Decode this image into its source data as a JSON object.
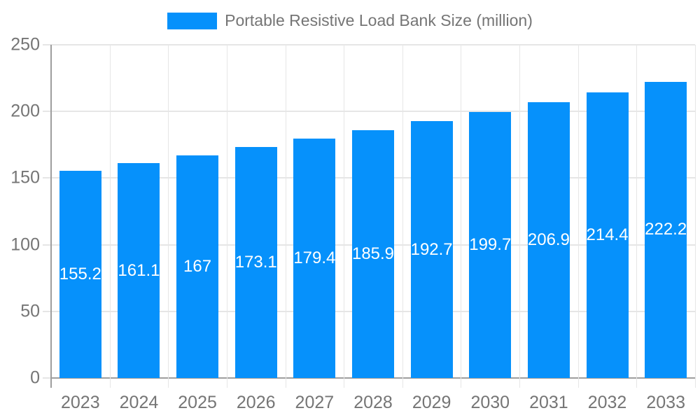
{
  "chart_data": {
    "type": "bar",
    "title": "Portable Resistive Load Bank Size (million)",
    "categories": [
      "2023",
      "2024",
      "2025",
      "2026",
      "2027",
      "2028",
      "2029",
      "2030",
      "2031",
      "2032",
      "2033"
    ],
    "values": [
      155.2,
      161.1,
      167,
      173.1,
      179.4,
      185.9,
      192.7,
      199.7,
      206.9,
      214.4,
      222.2
    ],
    "xlabel": "",
    "ylabel": "",
    "ylim": [
      0,
      250
    ],
    "yticks": [
      0,
      50,
      100,
      150,
      200,
      250
    ],
    "grid": true,
    "legend_position": "top-center",
    "colors": {
      "bar": "#0691fb",
      "axis_line": "#9e9e9e",
      "grid_line": "#e6e6e6",
      "tick_label": "#757575",
      "legend_text": "#757575",
      "data_label": "#ffffff",
      "background": "#ffffff"
    }
  }
}
